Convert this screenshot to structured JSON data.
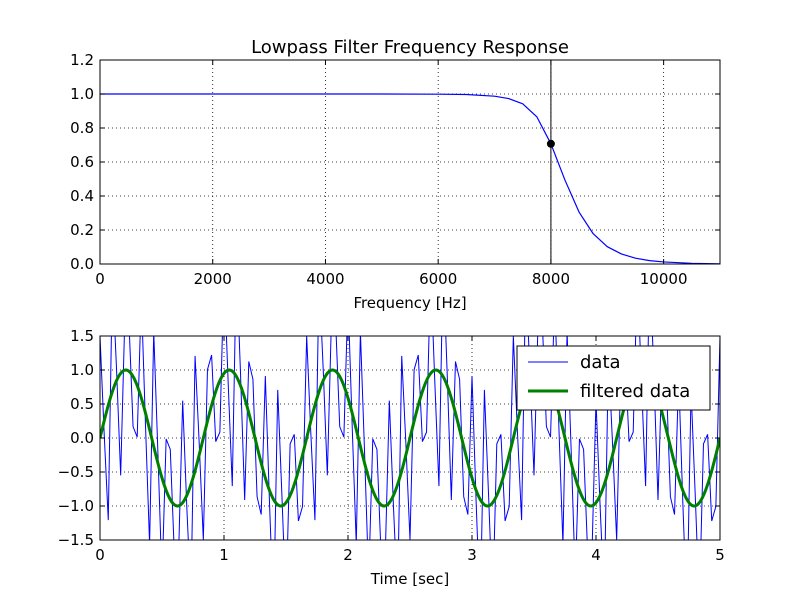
{
  "chart_data": [
    {
      "type": "line",
      "title": "Lowpass Filter Frequency Response",
      "xlabel": "Frequency [Hz]",
      "ylabel": "",
      "xlim": [
        0,
        11000
      ],
      "ylim": [
        0,
        1.2
      ],
      "xticks": [
        0,
        2000,
        4000,
        6000,
        8000,
        10000
      ],
      "xtick_labels": [
        "0",
        "2000",
        "4000",
        "6000",
        "8000",
        "10000"
      ],
      "yticks": [
        0.0,
        0.2,
        0.4,
        0.6,
        0.8,
        1.0,
        1.2
      ],
      "ytick_labels": [
        "0.0",
        "0.2",
        "0.4",
        "0.6",
        "0.8",
        "1.0",
        "1.2"
      ],
      "grid": true,
      "series": [
        {
          "color": "#0000ff",
          "x": [
            0,
            1000,
            2000,
            3000,
            4000,
            5000,
            6000,
            6500,
            7000,
            7250,
            7500,
            7750,
            8000,
            8250,
            8500,
            8750,
            9000,
            9250,
            9500,
            9750,
            10000,
            10500,
            11000
          ],
          "values": [
            1.0,
            1.0,
            1.0,
            1.0,
            1.0,
            1.0,
            0.999,
            0.997,
            0.987,
            0.973,
            0.942,
            0.866,
            0.707,
            0.493,
            0.305,
            0.178,
            0.102,
            0.059,
            0.034,
            0.02,
            0.012,
            0.004,
            0.001
          ]
        }
      ],
      "cutoff": {
        "x": 8000,
        "y": 0.707,
        "line_color": "#000000",
        "marker_color": "#000000"
      }
    },
    {
      "type": "line",
      "title": "",
      "xlabel": "Time [sec]",
      "ylabel": "",
      "xlim": [
        0,
        5
      ],
      "ylim": [
        -1.5,
        1.5
      ],
      "xticks": [
        0,
        1,
        2,
        3,
        4,
        5
      ],
      "xtick_labels": [
        "0",
        "1",
        "2",
        "3",
        "4",
        "5"
      ],
      "yticks": [
        -1.5,
        -1.0,
        -0.5,
        0.0,
        0.5,
        1.0,
        1.5
      ],
      "ytick_labels": [
        "−1.5",
        "−1.0",
        "−0.5",
        "0.0",
        "0.5",
        "1.0",
        "1.5"
      ],
      "grid": true,
      "legend_position": "upper right",
      "series": [
        {
          "name": "data",
          "color": "#0000ff",
          "formula": "sin(1.2*2*pi*t) + 1.5*cos(9*2*pi*t) + 0.5*sin(12*2*pi*t)",
          "sample_rate": 30,
          "t_range": [
            0,
            5
          ]
        },
        {
          "name": "filtered data",
          "color": "#008000",
          "formula": "sin(1.2*2*pi*t)",
          "t_range": [
            0,
            5
          ]
        }
      ]
    }
  ]
}
